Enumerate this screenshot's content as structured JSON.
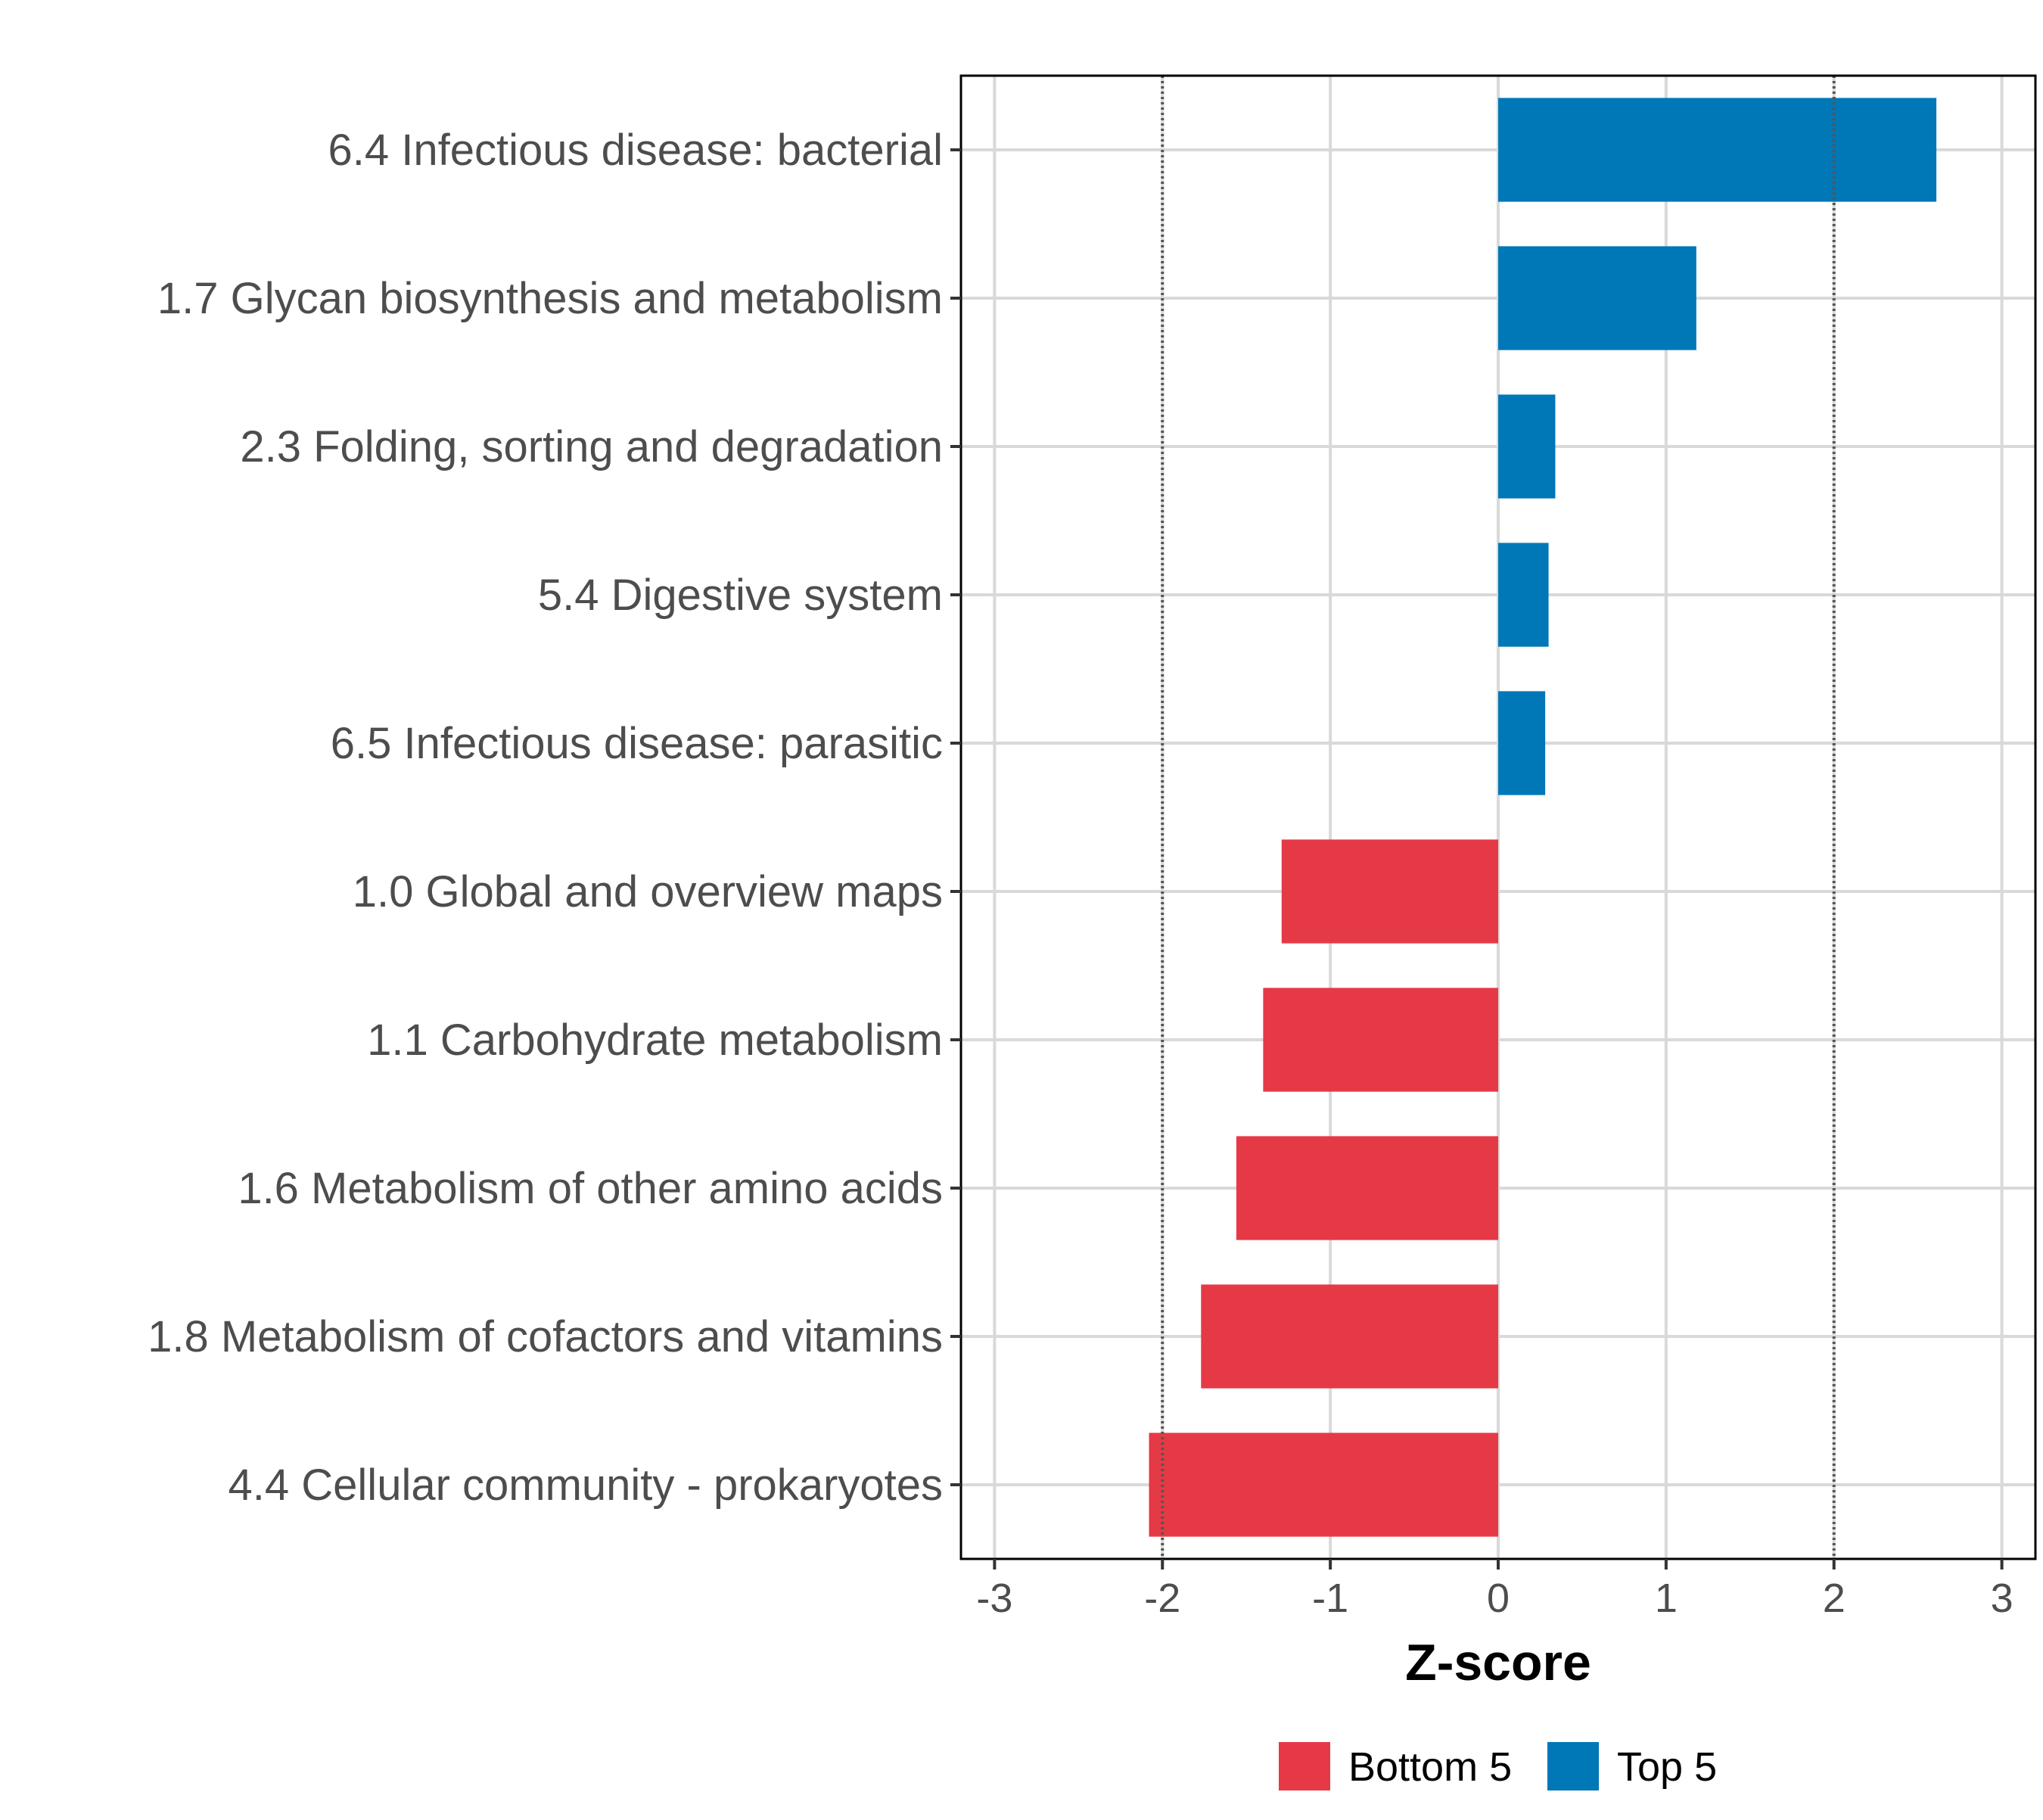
{
  "chart_data": {
    "type": "bar",
    "orientation": "horizontal",
    "title": "",
    "xlabel": "Z-score",
    "ylabel": "",
    "xlim": [
      -3.2,
      3.2
    ],
    "x_ticks": [
      -3,
      -2,
      -1,
      0,
      1,
      2,
      3
    ],
    "x_tick_labels": [
      "-3",
      "-2",
      "-1",
      "0",
      "1",
      "2",
      "3"
    ],
    "reference_lines": [
      -2,
      2
    ],
    "grid": true,
    "legend_position": "bottom",
    "categories": [
      "6.4 Infectious disease: bacterial",
      "1.7 Glycan biosynthesis and metabolism",
      "2.3 Folding, sorting and degradation",
      "5.4 Digestive system",
      "6.5 Infectious disease: parasitic",
      "1.0 Global and overview maps",
      "1.1 Carbohydrate metabolism",
      "1.6 Metabolism of other amino acids",
      "1.8 Metabolism of cofactors and vitamins",
      "4.4 Cellular community - prokaryotes"
    ],
    "values": [
      2.61,
      1.18,
      0.34,
      0.3,
      0.28,
      -1.29,
      -1.4,
      -1.56,
      -1.77,
      -2.08
    ],
    "groups": [
      "Top 5",
      "Top 5",
      "Top 5",
      "Top 5",
      "Top 5",
      "Bottom 5",
      "Bottom 5",
      "Bottom 5",
      "Bottom 5",
      "Bottom 5"
    ],
    "series": [
      {
        "name": "Bottom 5",
        "color": "#e63946"
      },
      {
        "name": "Top 5",
        "color": "#0077b6"
      }
    ]
  }
}
